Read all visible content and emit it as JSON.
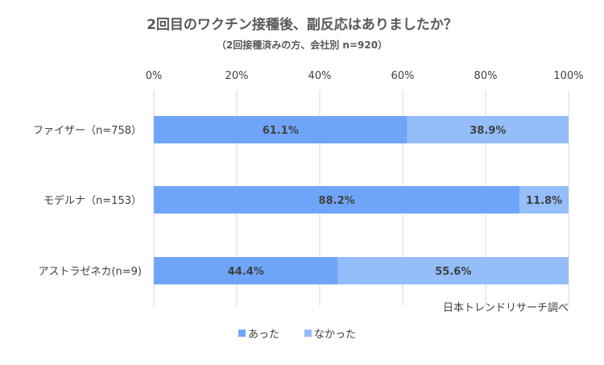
{
  "chart_data": {
    "type": "bar",
    "orientation": "horizontal",
    "stacked": true,
    "title": "2回目のワクチン接種後、副反応はありましたか？",
    "subtitle": "（2回接種済みの方、会社別 n=920）",
    "categories": [
      "ファイザー（n=758）",
      "モデルナ（n=153）",
      "アストラゼネカ(n=9)"
    ],
    "series": [
      {
        "name": "あった",
        "values": [
          61.1,
          88.2,
          44.4
        ],
        "labels": [
          "61.1%",
          "88.2%",
          "44.4%"
        ],
        "color": "#6FA5F8"
      },
      {
        "name": "なかった",
        "values": [
          38.9,
          11.8,
          55.6
        ],
        "labels": [
          "38.9%",
          "11.8%",
          "55.6%"
        ],
        "color": "#94BDFA"
      }
    ],
    "xlim": [
      0,
      100
    ],
    "xticks": [
      0,
      20,
      40,
      60,
      80,
      100
    ],
    "xtick_labels": [
      "0%",
      "20%",
      "40%",
      "60%",
      "80%",
      "100%"
    ],
    "grid": true,
    "legend_position": "bottom",
    "annotation": "日本トレンドリサーチ調べ",
    "colors": {
      "title": "#595959",
      "text": "#404040",
      "grid": "#d9d9d9"
    }
  }
}
